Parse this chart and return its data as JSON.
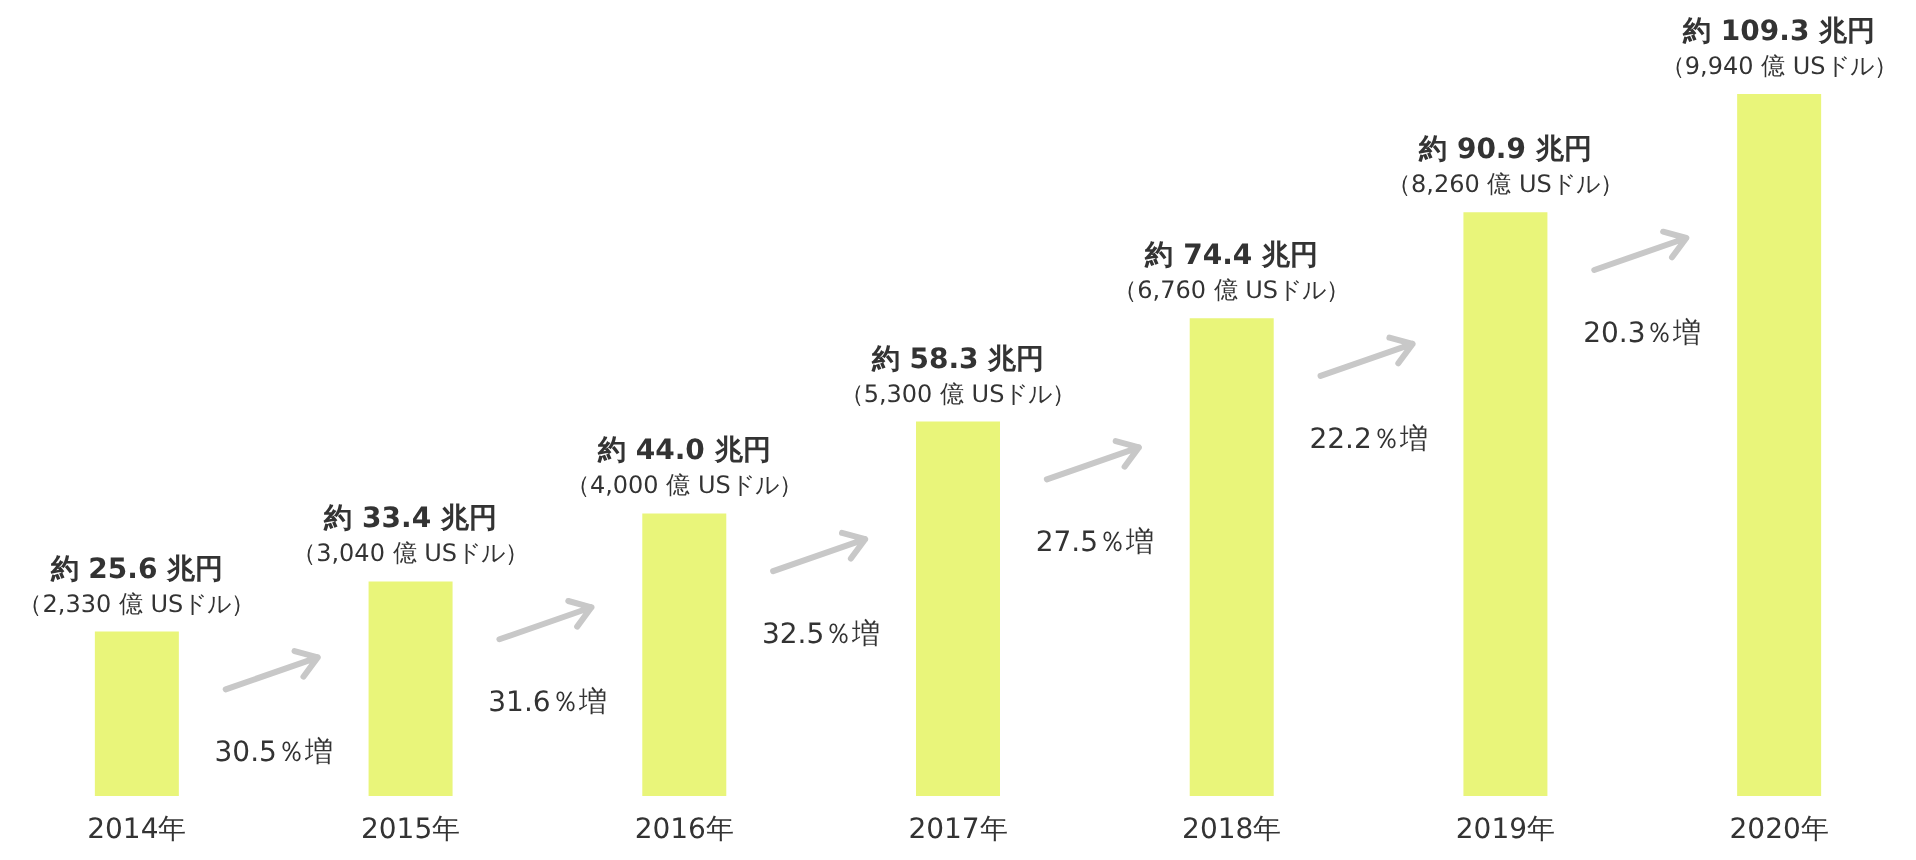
{
  "chart_data": {
    "type": "bar",
    "categories": [
      "2014年",
      "2015年",
      "2016年",
      "2017年",
      "2018年",
      "2019年",
      "2020年"
    ],
    "values": [
      25.6,
      33.4,
      44.0,
      58.3,
      74.4,
      90.9,
      109.3
    ],
    "color": "#e9f57a",
    "value_labels": [
      "約 25.6 兆円",
      "約 33.4 兆円",
      "約 44.0 兆円",
      "約 58.3 兆円",
      "約 74.4 兆円",
      "約 90.9 兆円",
      "約 109.3 兆円"
    ],
    "annotations": [
      {
        "text": "（2,330 億 USドル）",
        "x": "2014年",
        "y": 25.6
      },
      {
        "text": "（3,040 億 USドル）",
        "x": "2015年",
        "y": 33.4
      },
      {
        "text": "（4,000 億 USドル）",
        "x": "2016年",
        "y": 44.0
      },
      {
        "text": "（5,300 億 USドル）",
        "x": "2017年",
        "y": 58.3
      },
      {
        "text": "（6,760 億 USドル）",
        "x": "2018年",
        "y": 74.4
      },
      {
        "text": "（8,260 億 USドル）",
        "x": "2019年",
        "y": 90.9
      },
      {
        "text": "（9,940 億 USドル）",
        "x": "2020年",
        "y": 109.3
      },
      "30.5％増",
      "31.6％増",
      "32.5％増",
      "27.5％増",
      "22.2％増",
      "20.3％増"
    ]
  }
}
